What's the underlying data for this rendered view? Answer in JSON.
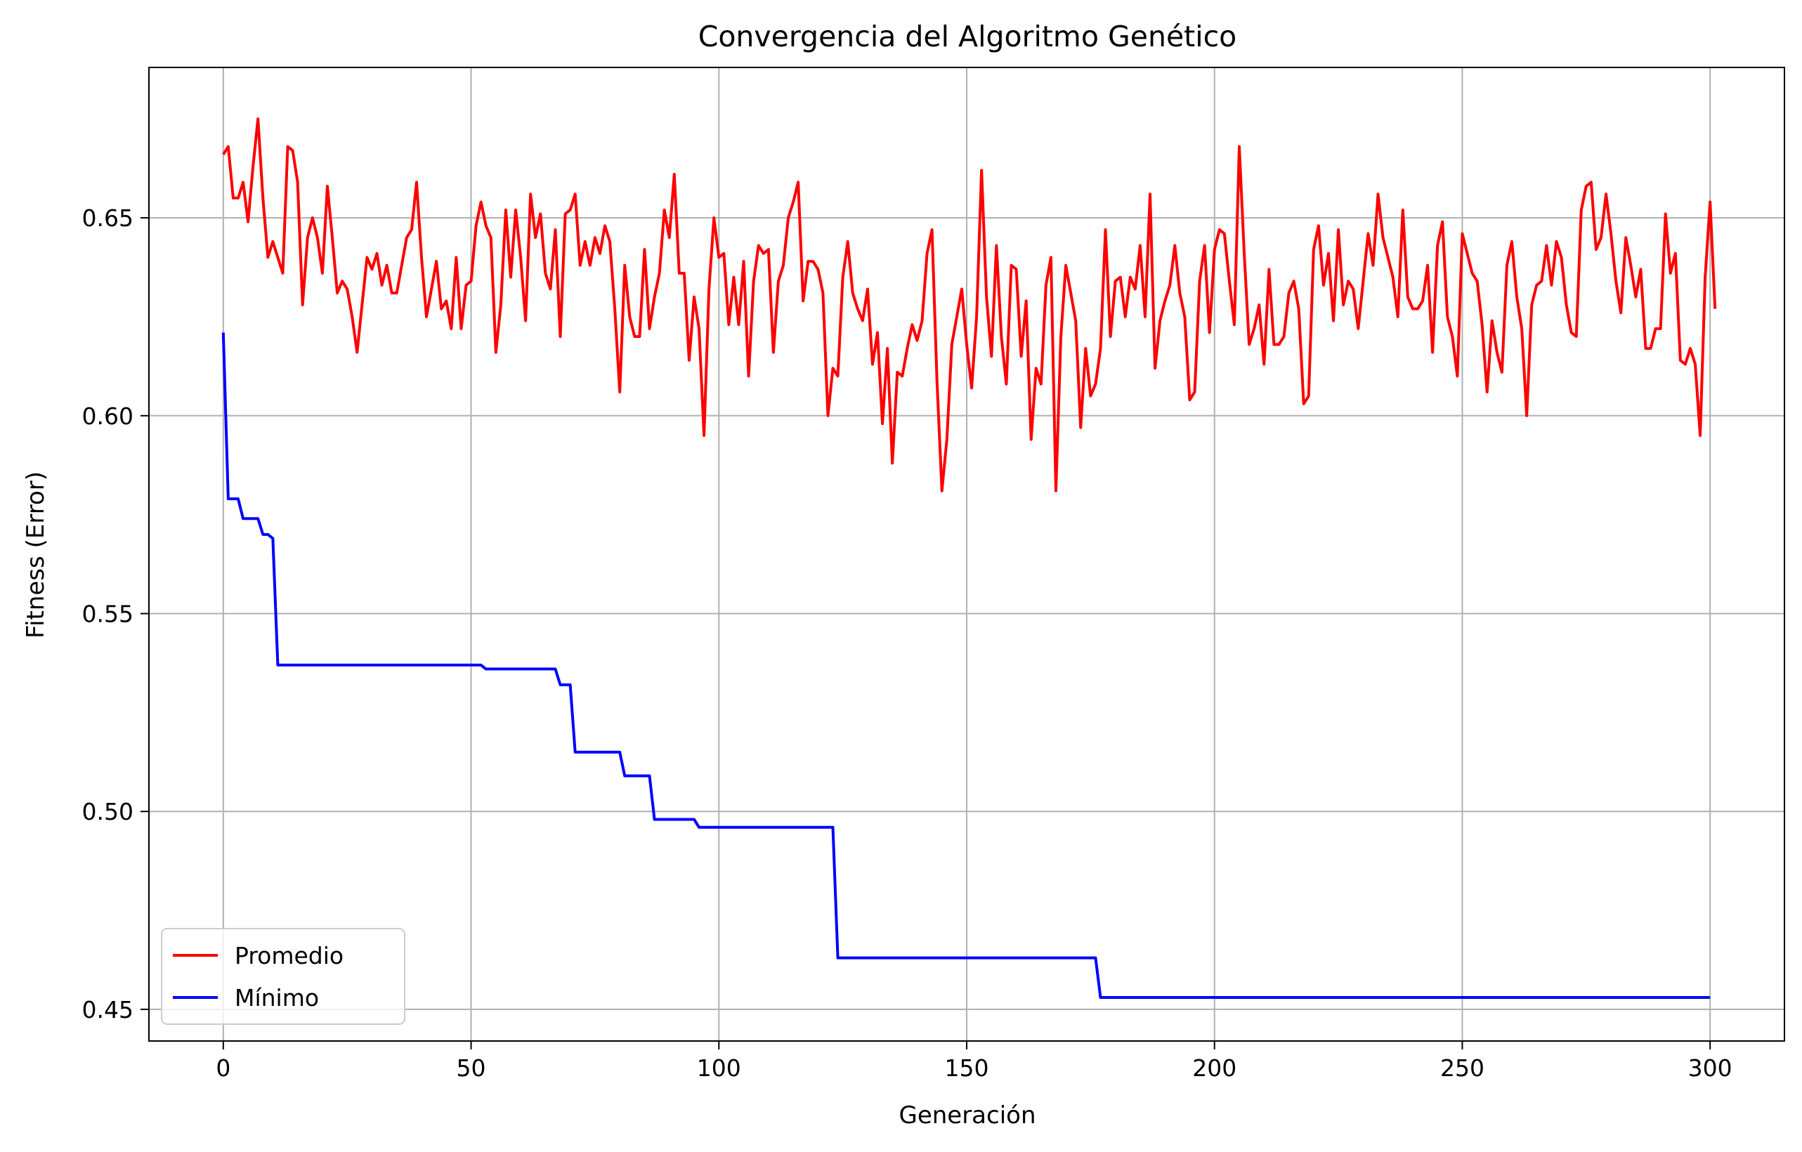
{
  "chart_data": {
    "type": "line",
    "title": "Convergencia del Algoritmo Genético",
    "xlabel": "Generación",
    "ylabel": "Fitness (Error)",
    "xlim": [
      -15,
      315
    ],
    "ylim": [
      0.442,
      0.688
    ],
    "x_ticks": [
      0,
      50,
      100,
      150,
      200,
      250,
      300
    ],
    "y_ticks": [
      0.45,
      0.5,
      0.55,
      0.6,
      0.65
    ],
    "grid": true,
    "legend_position": "lower-left",
    "series": [
      {
        "name": "Promedio",
        "color": "#ff0000",
        "values": [
          0.666,
          0.668,
          0.655,
          0.655,
          0.659,
          0.649,
          0.663,
          0.675,
          0.655,
          0.64,
          0.644,
          0.64,
          0.636,
          0.668,
          0.667,
          0.659,
          0.628,
          0.645,
          0.65,
          0.645,
          0.636,
          0.658,
          0.645,
          0.631,
          0.634,
          0.632,
          0.625,
          0.616,
          0.628,
          0.64,
          0.637,
          0.641,
          0.633,
          0.638,
          0.631,
          0.631,
          0.638,
          0.645,
          0.647,
          0.659,
          0.64,
          0.625,
          0.632,
          0.639,
          0.627,
          0.629,
          0.622,
          0.64,
          0.622,
          0.633,
          0.634,
          0.648,
          0.654,
          0.648,
          0.645,
          0.616,
          0.628,
          0.652,
          0.635,
          0.652,
          0.64,
          0.624,
          0.656,
          0.645,
          0.651,
          0.636,
          0.632,
          0.647,
          0.62,
          0.651,
          0.652,
          0.656,
          0.638,
          0.644,
          0.638,
          0.645,
          0.641,
          0.648,
          0.644,
          0.627,
          0.606,
          0.638,
          0.625,
          0.62,
          0.62,
          0.642,
          0.622,
          0.63,
          0.636,
          0.652,
          0.645,
          0.661,
          0.636,
          0.636,
          0.614,
          0.63,
          0.622,
          0.595,
          0.632,
          0.65,
          0.64,
          0.641,
          0.623,
          0.635,
          0.623,
          0.639,
          0.61,
          0.634,
          0.643,
          0.641,
          0.642,
          0.616,
          0.634,
          0.638,
          0.65,
          0.654,
          0.659,
          0.629,
          0.639,
          0.639,
          0.637,
          0.631,
          0.6,
          0.612,
          0.61,
          0.635,
          0.644,
          0.631,
          0.627,
          0.624,
          0.632,
          0.613,
          0.621,
          0.598,
          0.617,
          0.588,
          0.611,
          0.61,
          0.617,
          0.623,
          0.619,
          0.624,
          0.641,
          0.647,
          0.609,
          0.581,
          0.594,
          0.618,
          0.625,
          0.632,
          0.618,
          0.607,
          0.625,
          0.662,
          0.63,
          0.615,
          0.643,
          0.62,
          0.608,
          0.638,
          0.637,
          0.615,
          0.629,
          0.594,
          0.612,
          0.608,
          0.633,
          0.64,
          0.581,
          0.62,
          0.638,
          0.631,
          0.624,
          0.597,
          0.617,
          0.605,
          0.608,
          0.617,
          0.647,
          0.62,
          0.634,
          0.635,
          0.625,
          0.635,
          0.632,
          0.643,
          0.625,
          0.656,
          0.612,
          0.624,
          0.629,
          0.633,
          0.643,
          0.631,
          0.625,
          0.604,
          0.606,
          0.634,
          0.643,
          0.621,
          0.642,
          0.647,
          0.646,
          0.634,
          0.623,
          0.668,
          0.641,
          0.618,
          0.622,
          0.628,
          0.613,
          0.637,
          0.618,
          0.618,
          0.62,
          0.631,
          0.634,
          0.627,
          0.603,
          0.605,
          0.642,
          0.648,
          0.633,
          0.641,
          0.624,
          0.647,
          0.628,
          0.634,
          0.632,
          0.622,
          0.634,
          0.646,
          0.638,
          0.656,
          0.645,
          0.64,
          0.635,
          0.625,
          0.652,
          0.63,
          0.627,
          0.627,
          0.629,
          0.638,
          0.616,
          0.643,
          0.649,
          0.625,
          0.62,
          0.61,
          0.646,
          0.641,
          0.636,
          0.634,
          0.623,
          0.606,
          0.624,
          0.616,
          0.611,
          0.638,
          0.644,
          0.63,
          0.622,
          0.6,
          0.628,
          0.633,
          0.634,
          0.643,
          0.633,
          0.644,
          0.64,
          0.628,
          0.621,
          0.62,
          0.652,
          0.658,
          0.659,
          0.642,
          0.645,
          0.656,
          0.646,
          0.634,
          0.626,
          0.645,
          0.638,
          0.63,
          0.637,
          0.617,
          0.617,
          0.622,
          0.622,
          0.651,
          0.636,
          0.641,
          0.614,
          0.613,
          0.617,
          0.613,
          0.595,
          0.635,
          0.654,
          0.627
        ]
      },
      {
        "name": "Mínimo",
        "color": "#0000ff",
        "values": [
          0.621,
          0.579,
          0.579,
          0.579,
          0.574,
          0.574,
          0.574,
          0.574,
          0.57,
          0.57,
          0.569,
          0.537,
          0.537,
          0.537,
          0.537,
          0.537,
          0.537,
          0.537,
          0.537,
          0.537,
          0.537,
          0.537,
          0.537,
          0.537,
          0.537,
          0.537,
          0.537,
          0.537,
          0.537,
          0.537,
          0.537,
          0.537,
          0.537,
          0.537,
          0.537,
          0.537,
          0.537,
          0.537,
          0.537,
          0.537,
          0.537,
          0.537,
          0.537,
          0.537,
          0.537,
          0.537,
          0.537,
          0.537,
          0.537,
          0.537,
          0.537,
          0.537,
          0.537,
          0.536,
          0.536,
          0.536,
          0.536,
          0.536,
          0.536,
          0.536,
          0.536,
          0.536,
          0.536,
          0.536,
          0.536,
          0.536,
          0.536,
          0.536,
          0.532,
          0.532,
          0.532,
          0.515,
          0.515,
          0.515,
          0.515,
          0.515,
          0.515,
          0.515,
          0.515,
          0.515,
          0.515,
          0.509,
          0.509,
          0.509,
          0.509,
          0.509,
          0.509,
          0.498,
          0.498,
          0.498,
          0.498,
          0.498,
          0.498,
          0.498,
          0.498,
          0.498,
          0.496,
          0.496,
          0.496,
          0.496,
          0.496,
          0.496,
          0.496,
          0.496,
          0.496,
          0.496,
          0.496,
          0.496,
          0.496,
          0.496,
          0.496,
          0.496,
          0.496,
          0.496,
          0.496,
          0.496,
          0.496,
          0.496,
          0.496,
          0.496,
          0.496,
          0.496,
          0.496,
          0.496,
          0.463,
          0.463,
          0.463,
          0.463,
          0.463,
          0.463,
          0.463,
          0.463,
          0.463,
          0.463,
          0.463,
          0.463,
          0.463,
          0.463,
          0.463,
          0.463,
          0.463,
          0.463,
          0.463,
          0.463,
          0.463,
          0.463,
          0.463,
          0.463,
          0.463,
          0.463,
          0.463,
          0.463,
          0.463,
          0.463,
          0.463,
          0.463,
          0.463,
          0.463,
          0.463,
          0.463,
          0.463,
          0.463,
          0.463,
          0.463,
          0.463,
          0.463,
          0.463,
          0.463,
          0.463,
          0.463,
          0.463,
          0.463,
          0.463,
          0.463,
          0.463,
          0.463,
          0.463,
          0.453,
          0.453,
          0.453,
          0.453,
          0.453,
          0.453,
          0.453,
          0.453,
          0.453,
          0.453,
          0.453,
          0.453,
          0.453,
          0.453,
          0.453,
          0.453,
          0.453,
          0.453,
          0.453,
          0.453,
          0.453,
          0.453,
          0.453,
          0.453,
          0.453,
          0.453,
          0.453,
          0.453,
          0.453,
          0.453,
          0.453,
          0.453,
          0.453,
          0.453,
          0.453,
          0.453,
          0.453,
          0.453,
          0.453,
          0.453,
          0.453,
          0.453,
          0.453,
          0.453,
          0.453,
          0.453,
          0.453,
          0.453,
          0.453,
          0.453,
          0.453,
          0.453,
          0.453,
          0.453,
          0.453,
          0.453,
          0.453,
          0.453,
          0.453,
          0.453,
          0.453,
          0.453,
          0.453,
          0.453,
          0.453,
          0.453,
          0.453,
          0.453,
          0.453,
          0.453,
          0.453,
          0.453,
          0.453,
          0.453,
          0.453,
          0.453,
          0.453,
          0.453,
          0.453,
          0.453,
          0.453,
          0.453,
          0.453,
          0.453,
          0.453,
          0.453,
          0.453,
          0.453,
          0.453,
          0.453,
          0.453,
          0.453,
          0.453,
          0.453,
          0.453,
          0.453,
          0.453,
          0.453,
          0.453,
          0.453,
          0.453,
          0.453,
          0.453,
          0.453,
          0.453,
          0.453,
          0.453,
          0.453,
          0.453,
          0.453,
          0.453,
          0.453,
          0.453,
          0.453,
          0.453,
          0.453,
          0.453,
          0.453,
          0.453,
          0.453,
          0.453,
          0.453,
          0.453,
          0.453
        ]
      }
    ]
  }
}
